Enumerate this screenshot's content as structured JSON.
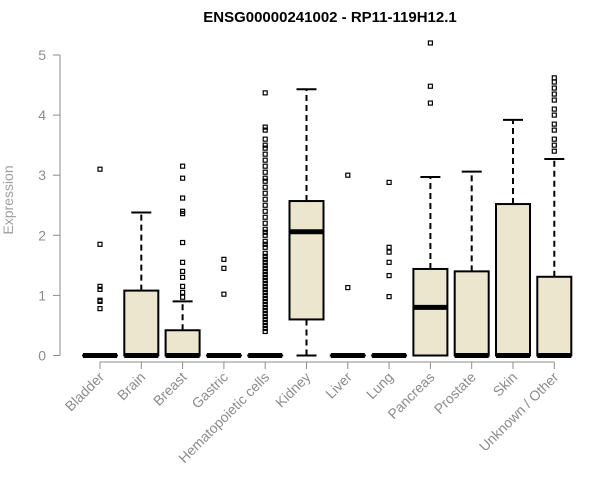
{
  "chart_data": {
    "type": "boxplot",
    "title": "ENSG00000241002 - RP11-119H12.1",
    "ylabel": "Expression",
    "ylim": [
      0,
      5.2
    ],
    "yticks": [
      0,
      1,
      2,
      3,
      4,
      5
    ],
    "grid": false,
    "box_color": "#EDE6CE",
    "categories": [
      "Bladder",
      "Brain",
      "Breast",
      "Gastric",
      "Hematopoietic cells",
      "Kidney",
      "Liver",
      "Lung",
      "Pancreas",
      "Prostate",
      "Skin",
      "Unknown / Other"
    ],
    "boxes": [
      {
        "q1": 0,
        "median": 0,
        "q3": 0,
        "whisker_low": 0,
        "whisker_high": 0,
        "outliers": [
          3.1,
          1.85,
          1.15,
          1.1,
          0.92,
          0.9,
          0.78
        ]
      },
      {
        "q1": 0,
        "median": 0,
        "q3": 1.08,
        "whisker_low": 0,
        "whisker_high": 2.38,
        "outliers": []
      },
      {
        "q1": 0,
        "median": 0,
        "q3": 0.42,
        "whisker_low": 0,
        "whisker_high": 0.9,
        "outliers": [
          3.15,
          2.95,
          2.62,
          2.4,
          2.36,
          1.88,
          1.55,
          1.4,
          1.3,
          1.15,
          1.05,
          0.97
        ]
      },
      {
        "q1": 0,
        "median": 0,
        "q3": 0,
        "whisker_low": 0,
        "whisker_high": 0,
        "outliers": [
          1.6,
          1.45,
          1.02
        ]
      },
      {
        "q1": 0,
        "median": 0,
        "q3": 0,
        "whisker_low": 0,
        "whisker_high": 0,
        "outliers": [
          4.37,
          3.8,
          3.75,
          3.6,
          3.5,
          3.45,
          3.35,
          3.25,
          3.15,
          3.05,
          2.95,
          2.9,
          2.8,
          2.7,
          2.6,
          2.5,
          2.4,
          2.3,
          2.2,
          2.1,
          2.05,
          2.0,
          1.9,
          1.85,
          1.8,
          1.7,
          1.65,
          1.6,
          1.55,
          1.5,
          1.45,
          1.4,
          1.35,
          1.3,
          1.25,
          1.2,
          1.15,
          1.1,
          1.05,
          1.0,
          0.95,
          0.9,
          0.85,
          0.8,
          0.75,
          0.7,
          0.65,
          0.6,
          0.55,
          0.5,
          0.45,
          0.4
        ]
      },
      {
        "q1": 0.6,
        "median": 2.06,
        "q3": 2.57,
        "whisker_low": 0,
        "whisker_high": 4.43,
        "outliers": []
      },
      {
        "q1": 0,
        "median": 0,
        "q3": 0,
        "whisker_low": 0,
        "whisker_high": 0,
        "outliers": [
          3.0,
          1.13
        ]
      },
      {
        "q1": 0,
        "median": 0,
        "q3": 0,
        "whisker_low": 0,
        "whisker_high": 0,
        "outliers": [
          2.88,
          1.8,
          1.72,
          1.55,
          1.33,
          0.98
        ]
      },
      {
        "q1": 0,
        "median": 0.8,
        "q3": 1.44,
        "whisker_low": 0,
        "whisker_high": 2.97,
        "outliers": [
          5.2,
          4.48,
          4.2
        ]
      },
      {
        "q1": 0,
        "median": 0,
        "q3": 1.4,
        "whisker_low": 0,
        "whisker_high": 3.06,
        "outliers": []
      },
      {
        "q1": 0,
        "median": 0,
        "q3": 2.52,
        "whisker_low": 0,
        "whisker_high": 3.92,
        "outliers": []
      },
      {
        "q1": 0,
        "median": 0,
        "q3": 1.31,
        "whisker_low": 0,
        "whisker_high": 3.27,
        "outliers": [
          4.62,
          4.55,
          4.45,
          4.35,
          4.25,
          4.1,
          4.0,
          3.85,
          3.75,
          3.6,
          3.5,
          3.4
        ]
      }
    ]
  }
}
